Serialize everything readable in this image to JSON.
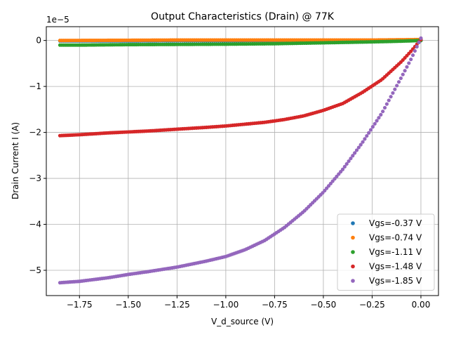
{
  "chart_data": {
    "type": "scatter",
    "title": "Output Characteristics (Drain) @ 77K",
    "xlabel": "V_d_source (V)",
    "ylabel": "Drain Current I (A)",
    "y_offset_label": "1e−5",
    "xlim": [
      -1.92,
      0.09
    ],
    "ylim": [
      -5.55,
      0.3
    ],
    "x_ticks": [
      -1.75,
      -1.5,
      -1.25,
      -1.0,
      -0.75,
      -0.5,
      -0.25,
      0.0
    ],
    "x_tick_labels": [
      "−1.75",
      "−1.50",
      "−1.25",
      "−1.00",
      "−0.75",
      "−0.50",
      "−0.25",
      "0.00"
    ],
    "y_ticks": [
      0,
      -1,
      -2,
      -3,
      -4,
      -5
    ],
    "y_tick_labels": [
      "0",
      "−1",
      "−2",
      "−3",
      "−4",
      "−5"
    ],
    "y_scale_note": "values in units of 1e-5 A",
    "grid": true,
    "legend_position": "lower-right",
    "series": [
      {
        "name": "Vgs=-0.37 V",
        "color": "#1f77b4",
        "points": [
          [
            -1.85,
            -0.01
          ],
          [
            -1.5,
            -0.01
          ],
          [
            -1.25,
            -0.005
          ],
          [
            -1.0,
            -0.005
          ],
          [
            -0.75,
            0.0
          ],
          [
            -0.5,
            0.0
          ],
          [
            -0.25,
            0.0
          ],
          [
            0.0,
            0.0
          ]
        ]
      },
      {
        "name": "Vgs=-0.74 V",
        "color": "#ff7f0e",
        "points": [
          [
            -1.85,
            0.0
          ],
          [
            -1.5,
            0.005
          ],
          [
            -1.25,
            0.01
          ],
          [
            -1.0,
            0.01
          ],
          [
            -0.75,
            0.01
          ],
          [
            -0.5,
            0.01
          ],
          [
            -0.25,
            0.01
          ],
          [
            0.0,
            0.02
          ]
        ]
      },
      {
        "name": "Vgs=-1.11 V",
        "color": "#2ca02c",
        "points": [
          [
            -1.85,
            -0.1
          ],
          [
            -1.75,
            -0.1
          ],
          [
            -1.5,
            -0.09
          ],
          [
            -1.25,
            -0.085
          ],
          [
            -1.0,
            -0.08
          ],
          [
            -0.75,
            -0.07
          ],
          [
            -0.5,
            -0.05
          ],
          [
            -0.25,
            -0.03
          ],
          [
            -0.1,
            -0.015
          ],
          [
            0.0,
            0.0
          ]
        ]
      },
      {
        "name": "Vgs=-1.48 V",
        "color": "#d62728",
        "points": [
          [
            -1.85,
            -2.07
          ],
          [
            -1.75,
            -2.05
          ],
          [
            -1.6,
            -2.01
          ],
          [
            -1.5,
            -1.99
          ],
          [
            -1.4,
            -1.97
          ],
          [
            -1.25,
            -1.93
          ],
          [
            -1.1,
            -1.89
          ],
          [
            -1.0,
            -1.86
          ],
          [
            -0.9,
            -1.82
          ],
          [
            -0.8,
            -1.78
          ],
          [
            -0.7,
            -1.72
          ],
          [
            -0.6,
            -1.64
          ],
          [
            -0.5,
            -1.52
          ],
          [
            -0.4,
            -1.37
          ],
          [
            -0.3,
            -1.13
          ],
          [
            -0.2,
            -0.85
          ],
          [
            -0.1,
            -0.46
          ],
          [
            -0.05,
            -0.23
          ],
          [
            0.0,
            0.02
          ]
        ]
      },
      {
        "name": "Vgs=-1.85 V",
        "color": "#9467bd",
        "points": [
          [
            -1.85,
            -5.27
          ],
          [
            -1.75,
            -5.24
          ],
          [
            -1.6,
            -5.16
          ],
          [
            -1.5,
            -5.09
          ],
          [
            -1.4,
            -5.03
          ],
          [
            -1.25,
            -4.93
          ],
          [
            -1.1,
            -4.8
          ],
          [
            -1.0,
            -4.7
          ],
          [
            -0.9,
            -4.55
          ],
          [
            -0.8,
            -4.35
          ],
          [
            -0.7,
            -4.07
          ],
          [
            -0.6,
            -3.72
          ],
          [
            -0.5,
            -3.3
          ],
          [
            -0.4,
            -2.8
          ],
          [
            -0.3,
            -2.22
          ],
          [
            -0.2,
            -1.58
          ],
          [
            -0.15,
            -1.19
          ],
          [
            -0.1,
            -0.8
          ],
          [
            -0.05,
            -0.4
          ],
          [
            0.0,
            0.05
          ]
        ]
      }
    ]
  }
}
